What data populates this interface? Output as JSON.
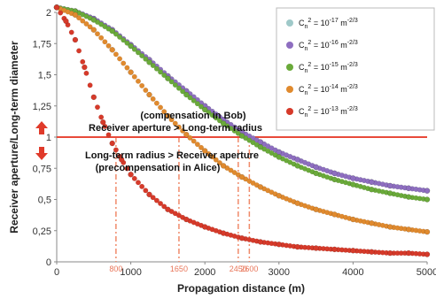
{
  "chart_data": {
    "type": "scatter",
    "xlabel": "Propagation distance (m)",
    "ylabel": "Receiver aperture/Long-term diameter",
    "xlim": [
      0,
      5000
    ],
    "ylim": [
      0,
      2
    ],
    "x_ticks": [
      "0",
      "1000",
      "2000",
      "3000",
      "4000",
      "5000"
    ],
    "y_ticks": [
      "0",
      "0,25",
      "0,5",
      "0,75",
      "1",
      "1,25",
      "1,5",
      "1,75",
      "2"
    ],
    "legend_position": "top-right",
    "reference_line": {
      "y": 1,
      "color": "#e84a3a"
    },
    "markers": [
      {
        "x": 800,
        "label": "800"
      },
      {
        "x": 1650,
        "label": "1650"
      },
      {
        "x": 2450,
        "label": "2450"
      },
      {
        "x": 2600,
        "label": "2600"
      }
    ],
    "annotations": {
      "above_line_1": "(compensation in Bob)",
      "above_line_2": "Receiver aperture > Long-term radius",
      "below_line_1": "Long-term radius > Receiver aperture",
      "below_line_2": "(precompensation in Alice)"
    },
    "series": [
      {
        "legend_base": "C",
        "legend_sub": "n",
        "legend_mid": "2 = 10",
        "legend_exp": "-17",
        "legend_unit": "m",
        "legend_unit_exp": "-2/3",
        "color": "#9fc9c9",
        "x": [
          0,
          250,
          500,
          750,
          1000,
          1250,
          1500,
          1750,
          2000,
          2250,
          2500,
          2750,
          3000,
          3250,
          3500,
          3750,
          4000,
          4250,
          4500,
          4750,
          5000
        ],
        "y": [
          2.04,
          2.01,
          1.95,
          1.86,
          1.74,
          1.62,
          1.49,
          1.37,
          1.25,
          1.14,
          1.04,
          0.96,
          0.88,
          0.82,
          0.76,
          0.71,
          0.67,
          0.64,
          0.61,
          0.59,
          0.57
        ]
      },
      {
        "legend_base": "C",
        "legend_sub": "n",
        "legend_mid": "2 = 10",
        "legend_exp": "-16",
        "legend_unit": "m",
        "legend_unit_exp": "-2/3",
        "color": "#8e6ec0",
        "x": [
          0,
          250,
          500,
          750,
          1000,
          1250,
          1500,
          1750,
          2000,
          2250,
          2500,
          2750,
          3000,
          3250,
          3500,
          3750,
          4000,
          4250,
          4500,
          4750,
          5000
        ],
        "y": [
          2.04,
          2.01,
          1.95,
          1.86,
          1.74,
          1.62,
          1.49,
          1.37,
          1.25,
          1.14,
          1.04,
          0.96,
          0.88,
          0.82,
          0.76,
          0.71,
          0.67,
          0.64,
          0.61,
          0.59,
          0.57
        ]
      },
      {
        "legend_base": "C",
        "legend_sub": "n",
        "legend_mid": "2 = 10",
        "legend_exp": "-15",
        "legend_unit": "m",
        "legend_unit_exp": "-2/3",
        "color": "#6aaa3a",
        "x": [
          0,
          250,
          500,
          750,
          1000,
          1250,
          1500,
          1750,
          2000,
          2250,
          2500,
          2750,
          3000,
          3250,
          3500,
          3750,
          4000,
          4250,
          4500,
          4750,
          5000
        ],
        "y": [
          2.04,
          2.01,
          1.94,
          1.85,
          1.73,
          1.6,
          1.47,
          1.34,
          1.22,
          1.11,
          1.01,
          0.92,
          0.84,
          0.77,
          0.71,
          0.66,
          0.62,
          0.58,
          0.55,
          0.52,
          0.5
        ]
      },
      {
        "legend_base": "C",
        "legend_sub": "n",
        "legend_mid": "2 = 10",
        "legend_exp": "-14",
        "legend_unit": "m",
        "legend_unit_exp": "-2/3",
        "color": "#e08a2e",
        "x": [
          0,
          250,
          500,
          750,
          1000,
          1250,
          1500,
          1750,
          2000,
          2250,
          2500,
          2750,
          3000,
          3250,
          3500,
          3750,
          4000,
          4250,
          4500,
          4750,
          5000
        ],
        "y": [
          2.04,
          1.98,
          1.86,
          1.7,
          1.52,
          1.34,
          1.17,
          1.02,
          0.89,
          0.77,
          0.68,
          0.6,
          0.53,
          0.47,
          0.42,
          0.38,
          0.34,
          0.31,
          0.28,
          0.26,
          0.24
        ]
      },
      {
        "legend_base": "C",
        "legend_sub": "n",
        "legend_mid": "2 = 10",
        "legend_exp": "-13",
        "legend_unit": "m",
        "legend_unit_exp": "-2/3",
        "color": "#d63a2a",
        "x": [
          0,
          125,
          250,
          375,
          500,
          625,
          750,
          875,
          1000,
          1250,
          1500,
          1750,
          2000,
          2250,
          2500,
          2750,
          3000,
          3250,
          3500,
          3750,
          4000,
          4250,
          4500,
          4750,
          5000
        ],
        "y": [
          2.04,
          1.93,
          1.78,
          1.56,
          1.32,
          1.12,
          0.95,
          0.82,
          0.7,
          0.54,
          0.42,
          0.34,
          0.28,
          0.23,
          0.19,
          0.16,
          0.14,
          0.12,
          0.11,
          0.1,
          0.09,
          0.08,
          0.07,
          0.07,
          0.06
        ]
      }
    ]
  }
}
